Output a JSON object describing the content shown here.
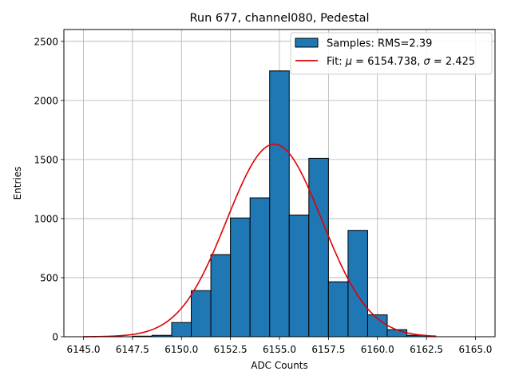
{
  "chart_data": {
    "type": "bar",
    "title": "Run 677, channel080, Pedestal",
    "xlabel": "ADC Counts",
    "ylabel": "Entries",
    "xlim": [
      6144.0,
      6166.0
    ],
    "ylim": [
      0,
      2600
    ],
    "xticks": [
      6145.0,
      6147.5,
      6150.0,
      6152.5,
      6155.0,
      6157.5,
      6160.0,
      6162.5,
      6165.0
    ],
    "xtick_labels": [
      "6145.0",
      "6147.5",
      "6150.0",
      "6152.5",
      "6155.0",
      "6157.5",
      "6160.0",
      "6162.5",
      "6165.0"
    ],
    "yticks": [
      0,
      500,
      1000,
      1500,
      2000,
      2500
    ],
    "ytick_labels": [
      "0",
      "500",
      "1000",
      "1500",
      "2000",
      "2500"
    ],
    "grid": true,
    "legend_position": "top-right",
    "bar_color": "#1f77b4",
    "fit_color": "#e00000",
    "histogram": {
      "name": "Samples: RMS=2.39",
      "bins": [
        {
          "x0": 6147.5,
          "x1": 6148.5,
          "count": 5
        },
        {
          "x0": 6148.5,
          "x1": 6149.5,
          "count": 12
        },
        {
          "x0": 6149.5,
          "x1": 6150.5,
          "count": 120
        },
        {
          "x0": 6150.5,
          "x1": 6151.5,
          "count": 390
        },
        {
          "x0": 6151.5,
          "x1": 6152.5,
          "count": 695
        },
        {
          "x0": 6152.5,
          "x1": 6153.5,
          "count": 1005
        },
        {
          "x0": 6153.5,
          "x1": 6154.5,
          "count": 1175
        },
        {
          "x0": 6154.5,
          "x1": 6155.5,
          "count": 2250
        },
        {
          "x0": 6155.5,
          "x1": 6156.5,
          "count": 1030
        },
        {
          "x0": 6156.5,
          "x1": 6157.5,
          "count": 1510
        },
        {
          "x0": 6157.5,
          "x1": 6158.5,
          "count": 465
        },
        {
          "x0": 6158.5,
          "x1": 6159.5,
          "count": 900
        },
        {
          "x0": 6159.5,
          "x1": 6160.5,
          "count": 185
        },
        {
          "x0": 6160.5,
          "x1": 6161.5,
          "count": 60
        },
        {
          "x0": 6161.5,
          "x1": 6162.5,
          "count": 12
        }
      ]
    },
    "fit": {
      "name_prefix": "Fit: ",
      "mu_symbol": "μ",
      "mu_text": " = 6154.738, ",
      "sigma_symbol": "σ",
      "sigma_text": " = 2.425",
      "mu": 6154.738,
      "sigma": 2.425,
      "amplitude": 1630,
      "x_range": [
        6145.0,
        6163.0
      ]
    }
  }
}
